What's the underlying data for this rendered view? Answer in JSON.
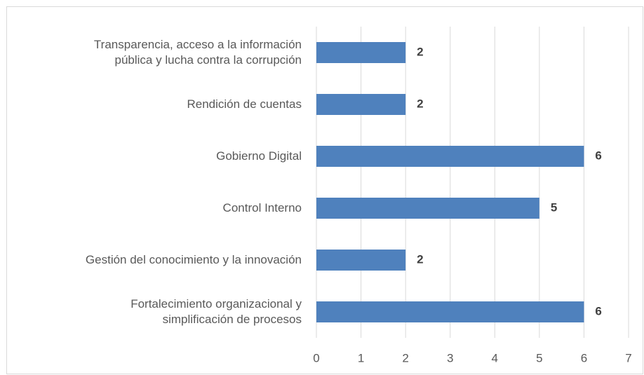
{
  "chart_data": {
    "type": "bar",
    "orientation": "horizontal",
    "categories": [
      "Transparencia, acceso a la información\npública y lucha contra la corrupción",
      "Rendición de cuentas",
      "Gobierno Digital",
      "Control Interno",
      "Gestión del conocimiento y la innovación",
      "Fortalecimiento organizacional y\nsimplificación de procesos"
    ],
    "values": [
      2,
      2,
      6,
      5,
      2,
      6
    ],
    "color": "#4f81bd",
    "xlim": [
      0,
      7
    ],
    "xticks": [
      0,
      1,
      2,
      3,
      4,
      5,
      6,
      7
    ],
    "grid": true
  }
}
